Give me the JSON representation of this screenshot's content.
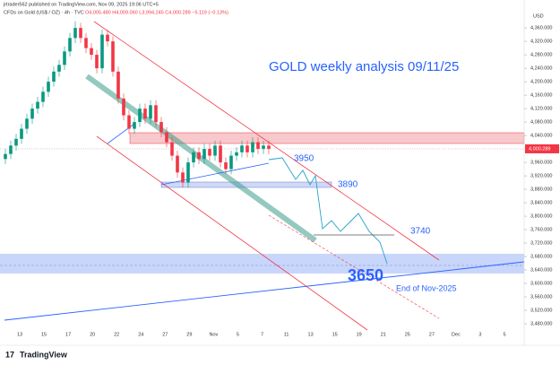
{
  "chart_data": {
    "type": "candlestick",
    "header": "jrtrader562 published on TradingView.com, Nov 09, 2025 19:06 UTC+5",
    "symbol_line": "CFDs on Gold (US$ / OZ) · 4h · TVC",
    "ohlc_line": "O4,005.480 H4,009.060 L3,994.245 C4,000.289 −5.119 (−0.13%)",
    "currency": "USD",
    "title": "GOLD weekly analysis 09/11/25",
    "annotations": [
      "3950",
      "3890",
      "3740",
      "3650",
      "End of Nov-2025"
    ],
    "categories": [
      "13",
      "15",
      "17",
      "20",
      "22",
      "24",
      "27",
      "29",
      "Nov",
      "5",
      "7",
      "11",
      "13",
      "15",
      "19",
      "21",
      "25",
      "27",
      "Dec",
      "3",
      "5"
    ],
    "open": [
      3970,
      3985,
      4010,
      4030,
      4060,
      4090,
      4120,
      4140,
      4170,
      4200,
      4230,
      4250,
      4290,
      4330,
      4360,
      4330,
      4300,
      4280,
      4240,
      4340,
      4320,
      4230,
      4150,
      4100,
      4060,
      4080,
      4120,
      4090,
      4130,
      4080,
      4050,
      4020,
      3980,
      3930,
      3900,
      3960,
      3990,
      3970,
      4000,
      3980,
      4010,
      3960,
      3940,
      3980,
      3990,
      4010,
      3990,
      4020,
      4000,
      4010
    ],
    "high": [
      4000,
      4025,
      4045,
      4075,
      4105,
      4135,
      4155,
      4185,
      4215,
      4245,
      4265,
      4305,
      4345,
      4380,
      4375,
      4345,
      4315,
      4295,
      4355,
      4355,
      4335,
      4245,
      4165,
      4115,
      4095,
      4135,
      4135,
      4145,
      4145,
      4095,
      4065,
      4035,
      3995,
      3945,
      3975,
      4005,
      4005,
      4015,
      4015,
      4025,
      4025,
      3975,
      3995,
      4005,
      4025,
      4025,
      4035,
      4035,
      4025,
      4025
    ],
    "low": [
      3955,
      3970,
      3995,
      4015,
      4045,
      4075,
      4105,
      4125,
      4155,
      4185,
      4215,
      4235,
      4275,
      4315,
      4315,
      4285,
      4265,
      4225,
      4225,
      4305,
      4215,
      4135,
      4085,
      4045,
      4045,
      4065,
      4075,
      4075,
      4065,
      4035,
      4005,
      3965,
      3915,
      3885,
      3885,
      3945,
      3955,
      3955,
      3965,
      3965,
      3945,
      3925,
      3925,
      3965,
      3975,
      3975,
      3975,
      3985,
      3985,
      3985
    ],
    "close": [
      3985,
      4010,
      4030,
      4060,
      4090,
      4120,
      4140,
      4170,
      4200,
      4230,
      4250,
      4290,
      4330,
      4360,
      4330,
      4300,
      4280,
      4240,
      4340,
      4320,
      4230,
      4150,
      4100,
      4060,
      4080,
      4120,
      4090,
      4130,
      4080,
      4050,
      4020,
      3980,
      3930,
      3900,
      3960,
      3990,
      3970,
      4000,
      3980,
      4010,
      3960,
      3940,
      3980,
      3990,
      4010,
      3990,
      4020,
      4000,
      4010,
      4000
    ],
    "up_color": "#089981",
    "down_color": "#f23645",
    "last_price": {
      "value": 4000.289,
      "label": "4,000.289"
    },
    "ylim": [
      3416,
      4411
    ],
    "yticks": [
      {
        "value": 3480,
        "label": "3,480.000"
      },
      {
        "value": 3520,
        "label": "3,520.000"
      },
      {
        "value": 3560,
        "label": "3,560.000"
      },
      {
        "value": 3600,
        "label": "3,600.000"
      },
      {
        "value": 3640,
        "label": "3,640.000"
      },
      {
        "value": 3680,
        "label": "3,680.000"
      },
      {
        "value": 3720,
        "label": "3,720.000"
      },
      {
        "value": 3760,
        "label": "3,760.000"
      },
      {
        "value": 3800,
        "label": "3,800.000"
      },
      {
        "value": 3840,
        "label": "3,840.000"
      },
      {
        "value": 3880,
        "label": "3,880.000"
      },
      {
        "value": 3920,
        "label": "3,920.000"
      },
      {
        "value": 3960,
        "label": "3,960.000"
      },
      {
        "value": 4040,
        "label": "4,040.000"
      },
      {
        "value": 4080,
        "label": "4,080.000"
      },
      {
        "value": 4120,
        "label": "4,120.000"
      },
      {
        "value": 4160,
        "label": "4,160.000"
      },
      {
        "value": 4200,
        "label": "4,200.000"
      },
      {
        "value": 4240,
        "label": "4,240.000"
      },
      {
        "value": 4280,
        "label": "4,280.000"
      },
      {
        "value": 4320,
        "label": "4,320.000"
      },
      {
        "value": 4360,
        "label": "4,360.000"
      }
    ],
    "brand": "TradingView"
  }
}
